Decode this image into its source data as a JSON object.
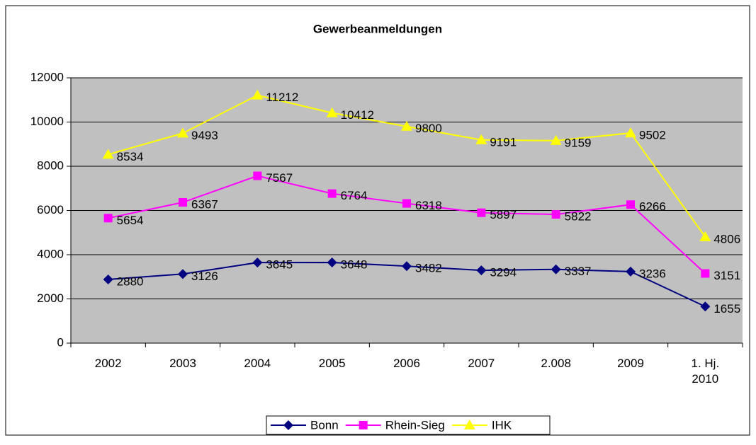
{
  "chart_data": {
    "type": "line",
    "title": "Gewerbeanmeldungen",
    "categories": [
      "2002",
      "2003",
      "2004",
      "2005",
      "2006",
      "2007",
      "2.008",
      "2009",
      "1. Hj. 2010"
    ],
    "series": [
      {
        "name": "Bonn",
        "color": "#000080",
        "marker": "diamond",
        "values": [
          2880,
          3126,
          3645,
          3648,
          3482,
          3294,
          3337,
          3236,
          1655
        ]
      },
      {
        "name": "Rhein-Sieg",
        "color": "#ff00ff",
        "marker": "square",
        "values": [
          5654,
          6367,
          7567,
          6764,
          6318,
          5897,
          5822,
          6266,
          3151
        ]
      },
      {
        "name": "IHK",
        "color": "#ffff00",
        "marker": "triangle",
        "values": [
          8534,
          9493,
          11212,
          10412,
          9800,
          9191,
          9159,
          9502,
          4806
        ]
      }
    ],
    "ylim": [
      0,
      12000
    ],
    "yticks": [
      0,
      2000,
      4000,
      6000,
      8000,
      10000,
      12000
    ],
    "grid": true,
    "legend": "bottom"
  }
}
